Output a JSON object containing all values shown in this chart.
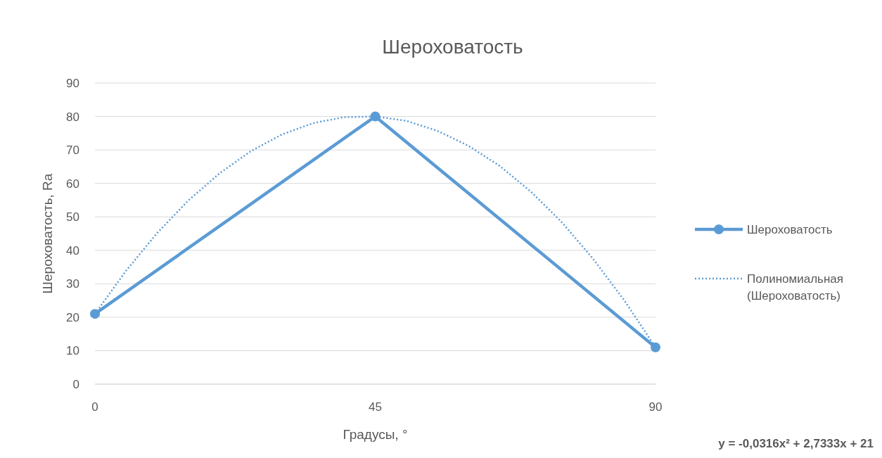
{
  "chart_data": {
    "type": "line",
    "title": "Шероховатость",
    "xlabel": "Градусы, °",
    "ylabel": "Шероховатость, Ra",
    "xlim": [
      0,
      90
    ],
    "xticks": [
      0,
      45,
      90
    ],
    "ylim": [
      0,
      90
    ],
    "yticks": [
      0,
      10,
      20,
      30,
      40,
      50,
      60,
      70,
      80,
      90
    ],
    "grid": "y",
    "legend": "right",
    "series": [
      {
        "name": "Шероховатость",
        "color": "#5b9bd5",
        "x": [
          0,
          45,
          90
        ],
        "values": [
          21,
          80,
          11
        ],
        "marker": "circle",
        "line_style": "solid"
      },
      {
        "name": "Полиномиальная (Шероховатость)",
        "color": "#5b9bd5",
        "x": [
          0,
          5,
          10,
          15,
          20,
          25,
          30,
          35,
          40,
          45,
          50,
          55,
          60,
          65,
          70,
          75,
          80,
          85,
          90
        ],
        "values": [
          21,
          33.9,
          45.2,
          54.9,
          63.0,
          69.6,
          74.6,
          78.0,
          79.8,
          80.0,
          78.7,
          75.7,
          71.2,
          65.2,
          57.5,
          48.3,
          37.4,
          25.0,
          11.0
        ],
        "marker": "none",
        "line_style": "dotted"
      }
    ],
    "annotations": [
      "y = -0,0316x² + 2,7333x + 21"
    ]
  }
}
